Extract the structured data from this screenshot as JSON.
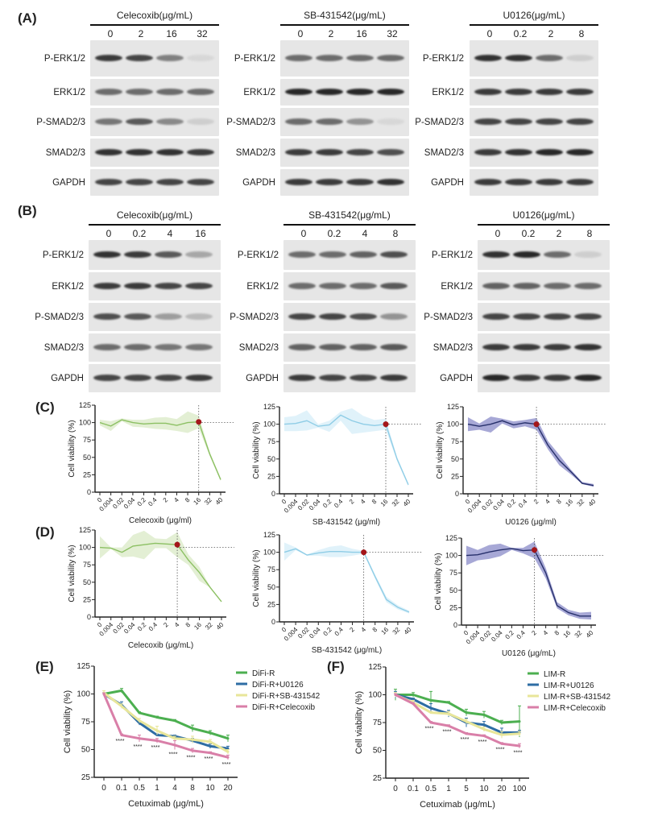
{
  "panel_labels": {
    "A": "(A)",
    "B": "(B)",
    "C": "(C)",
    "D": "(D)",
    "E": "(E)",
    "F": "(F)"
  },
  "blots": {
    "row_labels": [
      "P-ERK1/2",
      "ERK1/2",
      "P-SMAD2/3",
      "SMAD2/3",
      "GAPDH"
    ],
    "A": [
      {
        "title": "Celecoxib(μg/mL)",
        "lanes": [
          "0",
          "2",
          "16",
          "32"
        ],
        "intensity": [
          [
            0.85,
            0.8,
            0.5,
            0.05
          ],
          [
            0.6,
            0.6,
            0.6,
            0.6
          ],
          [
            0.55,
            0.7,
            0.45,
            0.1
          ],
          [
            0.9,
            0.9,
            0.9,
            0.85
          ],
          [
            0.8,
            0.8,
            0.8,
            0.8
          ]
        ]
      },
      {
        "title": "SB-431542(μg/mL)",
        "lanes": [
          "0",
          "2",
          "16",
          "32"
        ],
        "intensity": [
          [
            0.6,
            0.6,
            0.6,
            0.6
          ],
          [
            0.95,
            0.95,
            0.95,
            0.95
          ],
          [
            0.6,
            0.6,
            0.4,
            0.05
          ],
          [
            0.85,
            0.85,
            0.8,
            0.75
          ],
          [
            0.85,
            0.85,
            0.85,
            0.9
          ]
        ]
      },
      {
        "title": "U0126(μg/mL)",
        "lanes": [
          "0",
          "0.2",
          "2",
          "8"
        ],
        "intensity": [
          [
            0.9,
            0.9,
            0.6,
            0.1
          ],
          [
            0.85,
            0.85,
            0.85,
            0.85
          ],
          [
            0.8,
            0.8,
            0.8,
            0.8
          ],
          [
            0.85,
            0.9,
            0.95,
            0.95
          ],
          [
            0.85,
            0.85,
            0.85,
            0.85
          ]
        ]
      }
    ],
    "B": [
      {
        "title": "Celecoxib(μg/mL)",
        "lanes": [
          "0",
          "0.2",
          "4",
          "16"
        ],
        "intensity": [
          [
            0.9,
            0.85,
            0.7,
            0.3
          ],
          [
            0.85,
            0.85,
            0.8,
            0.8
          ],
          [
            0.75,
            0.7,
            0.35,
            0.2
          ],
          [
            0.6,
            0.6,
            0.55,
            0.55
          ],
          [
            0.8,
            0.8,
            0.8,
            0.85
          ]
        ]
      },
      {
        "title": "SB-431542(μg/mL)",
        "lanes": [
          "0",
          "0.2",
          "4",
          "8"
        ],
        "intensity": [
          [
            0.6,
            0.6,
            0.65,
            0.75
          ],
          [
            0.6,
            0.6,
            0.6,
            0.7
          ],
          [
            0.8,
            0.8,
            0.75,
            0.4
          ],
          [
            0.65,
            0.65,
            0.65,
            0.7
          ],
          [
            0.85,
            0.8,
            0.8,
            0.85
          ]
        ]
      },
      {
        "title": "U0126(μg/mL)",
        "lanes": [
          "0",
          "0.2",
          "2",
          "8"
        ],
        "intensity": [
          [
            0.9,
            0.95,
            0.6,
            0.1
          ],
          [
            0.65,
            0.65,
            0.6,
            0.6
          ],
          [
            0.8,
            0.8,
            0.8,
            0.8
          ],
          [
            0.85,
            0.85,
            0.85,
            0.9
          ],
          [
            0.95,
            0.85,
            0.85,
            0.95
          ]
        ]
      }
    ]
  },
  "chart_data": [
    {
      "id": "C1",
      "type": "line",
      "panel": "C",
      "xlabel": "Celecoxib (μg/ml)",
      "ylabel": "Cell viability (%)",
      "ylim": [
        0,
        125
      ],
      "yticks": [
        0,
        25,
        50,
        75,
        100,
        125
      ],
      "categories": [
        "0",
        "0.004",
        "0.02",
        "0.04",
        "0.2",
        "0.4",
        "2",
        "4",
        "8",
        "16",
        "32",
        "40"
      ],
      "values": [
        100,
        95,
        104,
        100,
        98,
        99,
        99,
        96,
        100,
        101,
        55,
        18
      ],
      "lower": [
        96,
        88,
        102,
        94,
        93,
        91,
        90,
        88,
        85,
        92,
        52,
        16
      ],
      "upper": [
        104,
        102,
        106,
        104,
        104,
        107,
        108,
        105,
        116,
        110,
        58,
        20
      ],
      "highlight_index": 9,
      "color": "#8cc063",
      "band": "#d9e9c6"
    },
    {
      "id": "C2",
      "type": "line",
      "panel": "C",
      "xlabel": "SB-431542 (μg/ml)",
      "ylabel": "Cell viability (%)",
      "ylim": [
        0,
        125
      ],
      "yticks": [
        0,
        25,
        50,
        75,
        100,
        125
      ],
      "categories": [
        "0",
        "0.004",
        "0.02",
        "0.04",
        "0.2",
        "0.4",
        "2",
        "4",
        "8",
        "16",
        "32",
        "40"
      ],
      "values": [
        100,
        101,
        105,
        97,
        99,
        113,
        105,
        100,
        98,
        100,
        50,
        13
      ],
      "lower": [
        90,
        90,
        91,
        95,
        89,
        105,
        86,
        88,
        90,
        92,
        47,
        11
      ],
      "upper": [
        110,
        112,
        120,
        100,
        105,
        118,
        123,
        112,
        106,
        108,
        53,
        15
      ],
      "highlight_index": 9,
      "color": "#8fcde6",
      "band": "#d6eef8"
    },
    {
      "id": "C3",
      "type": "line",
      "panel": "C",
      "xlabel": "U0126 (μg/ml)",
      "ylabel": "Cell viability (%)",
      "ylim": [
        0,
        125
      ],
      "yticks": [
        0,
        25,
        50,
        75,
        100,
        125
      ],
      "categories": [
        "0",
        "0.004",
        "0.02",
        "0.04",
        "0.2",
        "0.4",
        "2",
        "4",
        "8",
        "16",
        "32",
        "40"
      ],
      "values": [
        100,
        97,
        100,
        105,
        99,
        102,
        100,
        70,
        48,
        32,
        15,
        12
      ],
      "lower": [
        90,
        92,
        88,
        101,
        94,
        97,
        92,
        64,
        41,
        28,
        14,
        10
      ],
      "upper": [
        110,
        101,
        111,
        108,
        104,
        106,
        109,
        76,
        56,
        35,
        17,
        14
      ],
      "highlight_index": 6,
      "color": "#27306b",
      "band": "#8a8bc8"
    },
    {
      "id": "D1",
      "type": "line",
      "panel": "D",
      "xlabel": "Celecoxib (μg/mL)",
      "ylabel": "Cell viability (%)",
      "ylim": [
        0,
        125
      ],
      "yticks": [
        0,
        25,
        50,
        75,
        100,
        125
      ],
      "categories": [
        "0",
        "0.004",
        "0.02",
        "0.04",
        "0.2",
        "0.4",
        "2",
        "4",
        "8",
        "16",
        "32",
        "40"
      ],
      "values": [
        100,
        99,
        93,
        102,
        104,
        106,
        105,
        104,
        82,
        64,
        42,
        22
      ],
      "lower": [
        84,
        98,
        86,
        87,
        83,
        99,
        99,
        86,
        75,
        52,
        42,
        22
      ],
      "upper": [
        116,
        100,
        100,
        118,
        124,
        113,
        112,
        122,
        90,
        72,
        43,
        22
      ],
      "highlight_index": 7,
      "color": "#8cc063",
      "band": "#d9e9c6"
    },
    {
      "id": "D2",
      "type": "line",
      "panel": "D",
      "xlabel": "SB-431542 (μg/mL)",
      "ylabel": "Cell viability (%)",
      "ylim": [
        0,
        125
      ],
      "yticks": [
        0,
        25,
        50,
        75,
        100,
        125
      ],
      "categories": [
        "0",
        "0.004",
        "0.02",
        "0.04",
        "0.2",
        "0.4",
        "2",
        "4",
        "8",
        "16",
        "32",
        "40"
      ],
      "values": [
        100,
        105,
        96,
        99,
        101,
        101,
        100,
        100,
        65,
        32,
        21,
        14
      ],
      "lower": [
        88,
        103,
        95,
        95,
        93,
        93,
        95,
        98,
        62,
        28,
        18,
        12
      ],
      "upper": [
        114,
        107,
        97,
        103,
        108,
        110,
        105,
        102,
        68,
        36,
        24,
        16
      ],
      "highlight_index": 7,
      "color": "#8fcde6",
      "band": "#d6eef8"
    },
    {
      "id": "D3",
      "type": "line",
      "panel": "D",
      "xlabel": "U0126 (μg/mL)",
      "ylabel": "Cell viability (%)",
      "ylim": [
        0,
        125
      ],
      "yticks": [
        0,
        25,
        50,
        75,
        100,
        125
      ],
      "categories": [
        "0",
        "0.004",
        "0.02",
        "0.04",
        "0.2",
        "0.4",
        "2",
        "4",
        "8",
        "16",
        "32",
        "40"
      ],
      "values": [
        100,
        101,
        105,
        108,
        110,
        107,
        108,
        75,
        28,
        18,
        13,
        13
      ],
      "lower": [
        86,
        93,
        95,
        99,
        108,
        103,
        96,
        67,
        24,
        14,
        9,
        8
      ],
      "upper": [
        114,
        108,
        115,
        117,
        111,
        111,
        120,
        82,
        33,
        22,
        18,
        19
      ],
      "highlight_index": 6,
      "color": "#27306b",
      "band": "#8a8bc8"
    },
    {
      "id": "E",
      "type": "line",
      "panel": "E",
      "xlabel": "Cetuximab (μg/mL)",
      "ylabel": "Cell viability (%)",
      "ylim": [
        25,
        125
      ],
      "yticks": [
        25,
        50,
        75,
        100,
        125
      ],
      "categories": [
        "0",
        "0.1",
        "0.5",
        "1",
        "4",
        "8",
        "10",
        "20"
      ],
      "series": [
        {
          "name": "DiFi-R",
          "values": [
            100,
            103,
            83,
            79,
            76,
            69,
            65,
            60
          ],
          "err": [
            1,
            2,
            1,
            1,
            1,
            3,
            2,
            3
          ],
          "color": "#4caf50"
        },
        {
          "name": "DiFi-R+U0126",
          "values": [
            100,
            90,
            74,
            63,
            62,
            58,
            53,
            51
          ],
          "err": [
            1,
            3,
            2,
            1,
            1,
            2,
            2,
            2
          ],
          "color": "#2e6da4"
        },
        {
          "name": "DiFi-R+SB-431542",
          "values": [
            101,
            89,
            76,
            67,
            60,
            59,
            57,
            48
          ],
          "err": [
            2,
            2,
            2,
            4,
            2,
            3,
            2,
            2
          ],
          "color": "#e8e69a"
        },
        {
          "name": "DiFi-R+Celecoxib",
          "values": [
            100,
            63,
            60,
            58,
            54,
            49,
            47,
            43
          ],
          "err": [
            1,
            1,
            3,
            2,
            4,
            2,
            1,
            2
          ],
          "color": "#d97fa8"
        }
      ],
      "annotations": [
        "",
        "****",
        "****",
        "****",
        "****",
        "****",
        "****",
        "****"
      ]
    },
    {
      "id": "F",
      "type": "line",
      "panel": "F",
      "xlabel": "Cetuximab (μg/mL)",
      "ylabel": "Cell viability (%)",
      "ylim": [
        25,
        125
      ],
      "yticks": [
        25,
        50,
        75,
        100,
        125
      ],
      "categories": [
        "0",
        "0.1",
        "0.5",
        "1",
        "5",
        "10",
        "20",
        "100"
      ],
      "series": [
        {
          "name": "LIM-R",
          "values": [
            100,
            100,
            95,
            93,
            84,
            82,
            75,
            76
          ],
          "err": [
            5,
            2,
            8,
            1,
            3,
            3,
            2,
            14
          ],
          "color": "#4caf50"
        },
        {
          "name": "LIM-R+U0126",
          "values": [
            100,
            96,
            88,
            83,
            75,
            73,
            66,
            66
          ],
          "err": [
            3,
            1,
            4,
            3,
            4,
            3,
            4,
            2
          ],
          "color": "#2e6da4"
        },
        {
          "name": "LIM-R+SB-431542",
          "values": [
            100,
            93,
            84,
            83,
            76,
            69,
            64,
            65
          ],
          "err": [
            2,
            2,
            1,
            2,
            2,
            2,
            3,
            2
          ],
          "color": "#e8e69a"
        },
        {
          "name": "LIM-R+Celecoxib",
          "values": [
            100,
            92,
            75,
            72,
            65,
            63,
            56,
            54
          ],
          "err": [
            1,
            1,
            1,
            1,
            1,
            1,
            1,
            2
          ],
          "color": "#d97fa8"
        }
      ],
      "annotations": [
        "",
        "",
        "****",
        "****",
        "****",
        "****",
        "****",
        "****"
      ]
    }
  ]
}
